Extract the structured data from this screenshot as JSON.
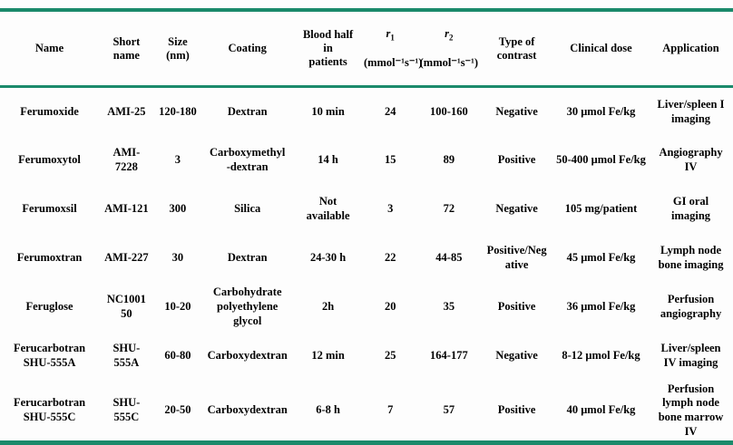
{
  "colors": {
    "rule": "#1b8a6b",
    "text": "#000000",
    "background": "#fdfdfd"
  },
  "table": {
    "headers": [
      {
        "label": "Name"
      },
      {
        "label": "Short\nname"
      },
      {
        "label": "Size\n(nm)"
      },
      {
        "label": "Coating"
      },
      {
        "label": "Blood half\nin\npatients"
      },
      {
        "symbol": "r",
        "sub": "1",
        "unit": "(mmol⁻¹s⁻¹)"
      },
      {
        "symbol": "r",
        "sub": "2",
        "unit": "(mmol⁻¹s⁻¹)"
      },
      {
        "label": "Type of\ncontrast"
      },
      {
        "label": "Clinical dose"
      },
      {
        "label": "Application"
      }
    ],
    "rows": [
      [
        "Ferumoxide",
        "AMI-25",
        "120-180",
        "Dextran",
        "10 min",
        "24",
        "100-160",
        "Negative",
        "30 μmol Fe/kg",
        "Liver/spleen I\nimaging"
      ],
      [
        "Ferumoxytol",
        "AMI-\n7228",
        "3",
        "Carboxymethyl\n-dextran",
        "14 h",
        "15",
        "89",
        "Positive",
        "50-400 μmol Fe/kg",
        "Angiography\nIV"
      ],
      [
        "Ferumoxsil",
        "AMI-121",
        "300",
        "Silica",
        "Not\navailable",
        "3",
        "72",
        "Negative",
        "105 mg/patient",
        "GI oral\nimaging"
      ],
      [
        "Ferumoxtran",
        "AMI-227",
        "30",
        "Dextran",
        "24-30 h",
        "22",
        "44-85",
        "Positive/Neg\native",
        "45 μmol Fe/kg",
        "Lymph node\nbone imaging"
      ],
      [
        "Feruglose",
        "NC1001\n50",
        "10-20",
        "Carbohydrate\npolyethylene\nglycol",
        "2h",
        "20",
        "35",
        "Positive",
        "36 μmol Fe/kg",
        "Perfusion\nangiography"
      ],
      [
        "Ferucarbotran\nSHU-555A",
        "SHU-\n555A",
        "60-80",
        "Carboxydextran",
        "12 min",
        "25",
        "164-177",
        "Negative",
        "8-12 μmol Fe/kg",
        "Liver/spleen\nIV imaging"
      ],
      [
        "Ferucarbotran\nSHU-555C",
        "SHU-\n555C",
        "20-50",
        "Carboxydextran",
        "6-8 h",
        "7",
        "57",
        "Positive",
        "40 μmol Fe/kg",
        "Perfusion\nlymph node\nbone marrow\nIV"
      ]
    ]
  }
}
